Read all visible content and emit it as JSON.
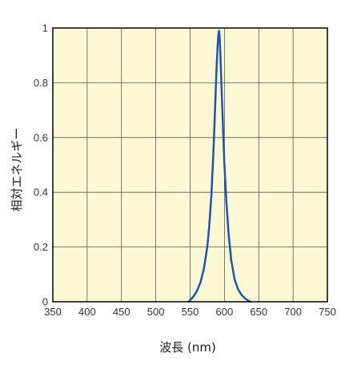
{
  "chart_data": {
    "type": "line",
    "xlabel": "波長 (nm)",
    "ylabel": "相対エネルギー",
    "xlim": [
      350,
      750
    ],
    "ylim": [
      0,
      1
    ],
    "xticks": [
      350,
      400,
      450,
      500,
      550,
      600,
      650,
      700,
      750
    ],
    "xtick_labels": [
      "350",
      "400",
      "450",
      "500",
      "550",
      "600",
      "650",
      "700",
      "750"
    ],
    "yticks": [
      0,
      0.2,
      0.4,
      0.6,
      0.8,
      1
    ],
    "ytick_labels": [
      "0",
      "0.2",
      "0.4",
      "0.6",
      "0.8",
      "1"
    ],
    "grid": true,
    "plot_background": "#fcf8d4",
    "grid_color": "#555555",
    "line_color": "#1a56b0",
    "series": [
      {
        "x": [
          548,
          555,
          560,
          565,
          570,
          575,
          578,
          581,
          584,
          586,
          588,
          590,
          591,
          592,
          593,
          594,
          596,
          598,
          600,
          603,
          606,
          610,
          615,
          620,
          625,
          630,
          635,
          638
        ],
        "values": [
          0.0,
          0.02,
          0.04,
          0.07,
          0.12,
          0.2,
          0.28,
          0.39,
          0.55,
          0.68,
          0.82,
          0.93,
          0.97,
          0.99,
          0.97,
          0.91,
          0.77,
          0.63,
          0.5,
          0.36,
          0.25,
          0.15,
          0.08,
          0.045,
          0.025,
          0.012,
          0.004,
          0.0
        ]
      }
    ]
  }
}
